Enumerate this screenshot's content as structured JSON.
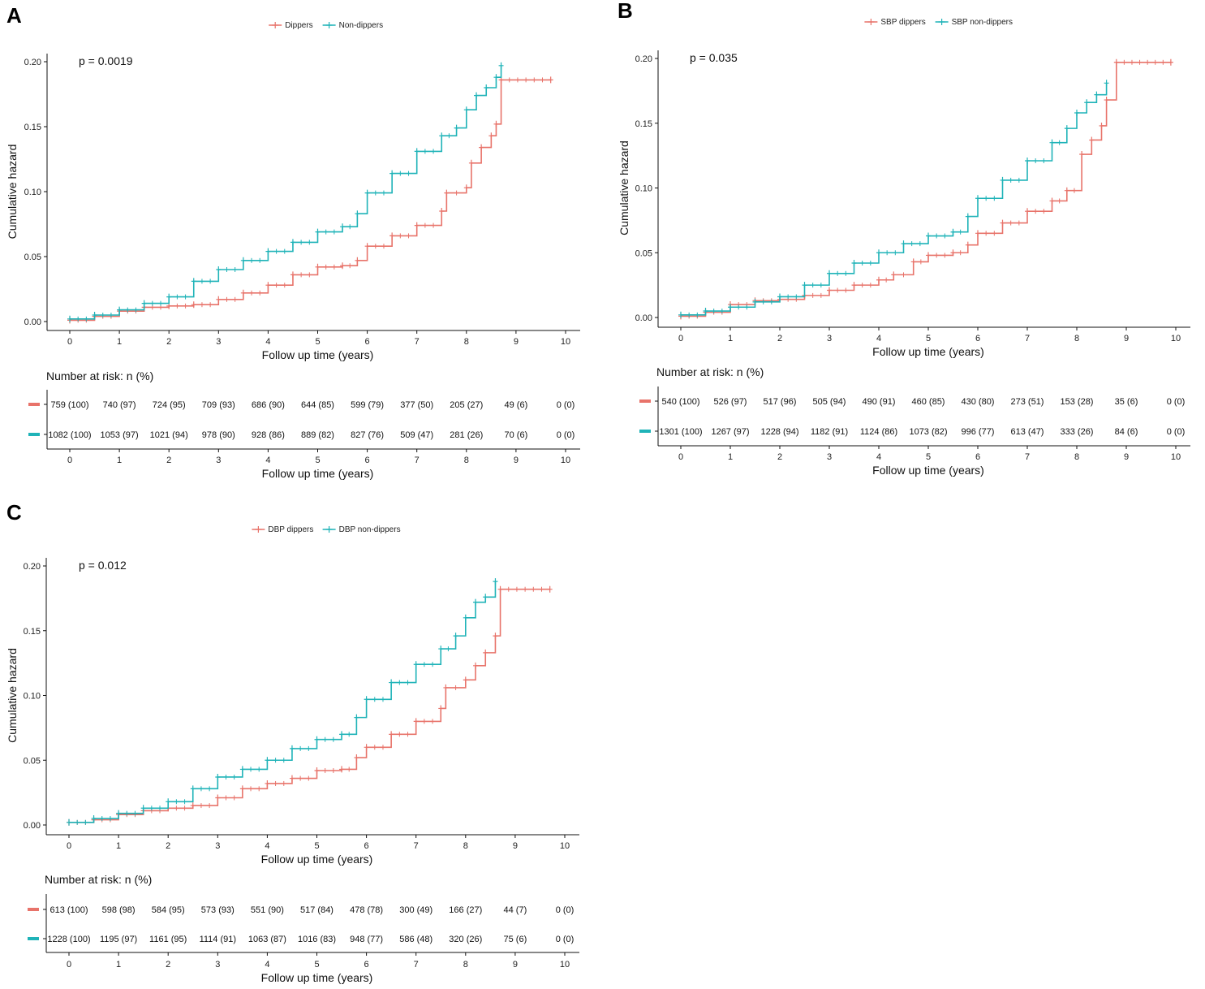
{
  "colors": {
    "group1": "#e8736a",
    "group2": "#1fb3b8",
    "axis": "#111111"
  },
  "chart_data": [
    {
      "type": "line",
      "panel_label": "A",
      "legend": [
        "Dippers",
        "Non-dippers"
      ],
      "pvalue": "p = 0.0019",
      "ylabel": "Cumulative hazard",
      "xlabel": "Follow up time (years)",
      "xlim": [
        0,
        10
      ],
      "ylim": [
        0,
        0.2
      ],
      "xticks": [
        "0",
        "1",
        "2",
        "3",
        "4",
        "5",
        "6",
        "7",
        "8",
        "9",
        "10"
      ],
      "yticks": [
        "0.00",
        "0.05",
        "0.10",
        "0.15",
        "0.20"
      ],
      "series": [
        {
          "name": "Dippers",
          "x": [
            0,
            0.5,
            1,
            1.5,
            2,
            2.5,
            3,
            3.5,
            4,
            4.5,
            5,
            5.5,
            5.8,
            6,
            6.5,
            7,
            7.5,
            7.6,
            8,
            8.1,
            8.3,
            8.5,
            8.6,
            8.7,
            9.7
          ],
          "y": [
            0.001,
            0.004,
            0.008,
            0.011,
            0.012,
            0.013,
            0.017,
            0.022,
            0.028,
            0.036,
            0.042,
            0.043,
            0.047,
            0.058,
            0.066,
            0.074,
            0.085,
            0.099,
            0.103,
            0.122,
            0.134,
            0.143,
            0.152,
            0.186,
            0.186
          ]
        },
        {
          "name": "Non-dippers",
          "x": [
            0,
            0.5,
            1,
            1.5,
            2,
            2.5,
            3,
            3.5,
            4,
            4.5,
            5,
            5.5,
            5.8,
            6,
            6.5,
            7,
            7.5,
            7.8,
            8,
            8.2,
            8.4,
            8.6,
            8.7
          ],
          "y": [
            0.002,
            0.005,
            0.009,
            0.014,
            0.019,
            0.031,
            0.04,
            0.047,
            0.054,
            0.061,
            0.069,
            0.073,
            0.083,
            0.099,
            0.114,
            0.131,
            0.143,
            0.149,
            0.163,
            0.174,
            0.18,
            0.188,
            0.197
          ]
        }
      ],
      "risk_table": {
        "title": "Number at risk: n (%)",
        "xlabel": "Follow up time (years)",
        "rows": [
          {
            "group": "Dippers",
            "values": [
              "759 (100)",
              "740 (97)",
              "724 (95)",
              "709 (93)",
              "686 (90)",
              "644 (85)",
              "599 (79)",
              "377 (50)",
              "205 (27)",
              "49 (6)",
              "0 (0)"
            ]
          },
          {
            "group": "Non-dippers",
            "values": [
              "1082 (100)",
              "1053 (97)",
              "1021 (94)",
              "978 (90)",
              "928 (86)",
              "889 (82)",
              "827 (76)",
              "509 (47)",
              "281 (26)",
              "70 (6)",
              "0 (0)"
            ]
          }
        ]
      }
    },
    {
      "type": "line",
      "panel_label": "B",
      "legend": [
        "SBP dippers",
        "SBP non-dippers"
      ],
      "pvalue": "p = 0.035",
      "ylabel": "Cumulative hazard",
      "xlabel": "Follow up time (years)",
      "xlim": [
        0,
        10
      ],
      "ylim": [
        0,
        0.2
      ],
      "xticks": [
        "0",
        "1",
        "2",
        "3",
        "4",
        "5",
        "6",
        "7",
        "8",
        "9",
        "10"
      ],
      "yticks": [
        "0.00",
        "0.05",
        "0.10",
        "0.15",
        "0.20"
      ],
      "series": [
        {
          "name": "SBP dippers",
          "x": [
            0,
            0.5,
            1,
            1.5,
            2,
            2.5,
            3,
            3.5,
            4,
            4.3,
            4.7,
            5,
            5.5,
            5.8,
            6,
            6.5,
            7,
            7.5,
            7.8,
            8.1,
            8.3,
            8.5,
            8.6,
            8.8,
            9.9
          ],
          "y": [
            0.001,
            0.004,
            0.01,
            0.013,
            0.014,
            0.017,
            0.021,
            0.025,
            0.029,
            0.033,
            0.043,
            0.048,
            0.05,
            0.056,
            0.065,
            0.073,
            0.082,
            0.09,
            0.098,
            0.126,
            0.137,
            0.148,
            0.168,
            0.197,
            0.197
          ]
        },
        {
          "name": "SBP non-dippers",
          "x": [
            0,
            0.5,
            1,
            1.5,
            2,
            2.5,
            3,
            3.5,
            4,
            4.5,
            5,
            5.5,
            5.8,
            6,
            6.5,
            7,
            7.5,
            7.8,
            8,
            8.2,
            8.4,
            8.6
          ],
          "y": [
            0.002,
            0.005,
            0.008,
            0.012,
            0.016,
            0.025,
            0.034,
            0.042,
            0.05,
            0.057,
            0.063,
            0.066,
            0.078,
            0.092,
            0.106,
            0.121,
            0.135,
            0.146,
            0.158,
            0.166,
            0.172,
            0.181
          ]
        }
      ],
      "risk_table": {
        "title": "Number at risk: n (%)",
        "xlabel": "Follow up time (years)",
        "rows": [
          {
            "group": "SBP dippers",
            "values": [
              "540 (100)",
              "526 (97)",
              "517 (96)",
              "505 (94)",
              "490 (91)",
              "460 (85)",
              "430 (80)",
              "273 (51)",
              "153 (28)",
              "35 (6)",
              "0 (0)"
            ]
          },
          {
            "group": "SBP non-dippers",
            "values": [
              "1301 (100)",
              "1267 (97)",
              "1228 (94)",
              "1182 (91)",
              "1124 (86)",
              "1073 (82)",
              "996 (77)",
              "613 (47)",
              "333 (26)",
              "84 (6)",
              "0 (0)"
            ]
          }
        ]
      }
    },
    {
      "type": "line",
      "panel_label": "C",
      "legend": [
        "DBP dippers",
        "DBP non-dippers"
      ],
      "pvalue": "p = 0.012",
      "ylabel": "Cumulative hazard",
      "xlabel": "Follow up time (years)",
      "xlim": [
        0,
        10
      ],
      "ylim": [
        0,
        0.2
      ],
      "xticks": [
        "0",
        "1",
        "2",
        "3",
        "4",
        "5",
        "6",
        "7",
        "8",
        "9",
        "10"
      ],
      "yticks": [
        "0.00",
        "0.05",
        "0.10",
        "0.15",
        "0.20"
      ],
      "series": [
        {
          "name": "DBP dippers",
          "x": [
            0,
            0.5,
            1,
            1.5,
            2,
            2.5,
            3,
            3.5,
            4,
            4.5,
            5,
            5.5,
            5.8,
            6,
            6.5,
            7,
            7.5,
            7.6,
            8,
            8.2,
            8.4,
            8.6,
            8.7,
            9.7
          ],
          "y": [
            0.002,
            0.004,
            0.008,
            0.011,
            0.013,
            0.015,
            0.021,
            0.028,
            0.032,
            0.036,
            0.042,
            0.043,
            0.052,
            0.06,
            0.07,
            0.08,
            0.09,
            0.106,
            0.112,
            0.123,
            0.133,
            0.146,
            0.182,
            0.182
          ]
        },
        {
          "name": "DBP non-dippers",
          "x": [
            0,
            0.5,
            1,
            1.5,
            2,
            2.5,
            3,
            3.5,
            4,
            4.5,
            5,
            5.5,
            5.8,
            6,
            6.5,
            7,
            7.5,
            7.8,
            8,
            8.2,
            8.4,
            8.6
          ],
          "y": [
            0.002,
            0.005,
            0.009,
            0.013,
            0.018,
            0.028,
            0.037,
            0.043,
            0.05,
            0.059,
            0.066,
            0.07,
            0.083,
            0.097,
            0.11,
            0.124,
            0.136,
            0.146,
            0.16,
            0.172,
            0.176,
            0.188
          ]
        }
      ],
      "risk_table": {
        "title": "Number at risk: n (%)",
        "xlabel": "Follow up time (years)",
        "rows": [
          {
            "group": "DBP dippers",
            "values": [
              "613 (100)",
              "598 (98)",
              "584 (95)",
              "573 (93)",
              "551 (90)",
              "517 (84)",
              "478 (78)",
              "300 (49)",
              "166 (27)",
              "44 (7)",
              "0 (0)"
            ]
          },
          {
            "group": "DBP non-dippers",
            "values": [
              "1228 (100)",
              "1195 (97)",
              "1161 (95)",
              "1114 (91)",
              "1063 (87)",
              "1016 (83)",
              "948 (77)",
              "586 (48)",
              "320 (26)",
              "75 (6)",
              "0 (0)"
            ]
          }
        ]
      }
    }
  ]
}
